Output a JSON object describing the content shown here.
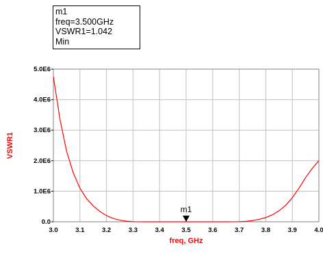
{
  "marker_readout": {
    "name": "m1",
    "freq_line": "freq=3.500GHz",
    "value_line": "VSWR1=1.042",
    "mode_line": "Min"
  },
  "chart_data": {
    "type": "line",
    "xlabel": "freq, GHz",
    "ylabel": "VSWR1",
    "xlim": [
      3.0,
      4.0
    ],
    "ylim": [
      0,
      5000000
    ],
    "x_ticks": [
      "3.0",
      "3.1",
      "3.2",
      "3.3",
      "3.4",
      "3.5",
      "3.6",
      "3.7",
      "3.8",
      "3.9",
      "4.0"
    ],
    "y_ticks": [
      "0.0",
      "1.0E6",
      "2.0E6",
      "3.0E6",
      "4.0E6",
      "5.0E6"
    ],
    "grid": true,
    "series": [
      {
        "color": "#ff0000",
        "x": [
          3.0,
          3.025,
          3.05,
          3.075,
          3.1,
          3.125,
          3.15,
          3.175,
          3.2,
          3.225,
          3.25,
          3.275,
          3.3,
          3.35,
          3.4,
          3.45,
          3.5,
          3.55,
          3.6,
          3.65,
          3.7,
          3.725,
          3.75,
          3.775,
          3.8,
          3.825,
          3.85,
          3.875,
          3.9,
          3.925,
          3.95,
          3.975,
          4.0
        ],
        "y": [
          4750000,
          3350000,
          2300000,
          1600000,
          1100000,
          760000,
          520000,
          340000,
          200000,
          110000,
          55000,
          20000,
          4000,
          0,
          0,
          0,
          1.042,
          0,
          0,
          0,
          4000,
          15000,
          40000,
          80000,
          140000,
          230000,
          360000,
          540000,
          790000,
          1100000,
          1450000,
          1750000,
          2000000
        ]
      }
    ],
    "markers": [
      {
        "name": "m1",
        "x": 3.5,
        "y": 1.042
      }
    ],
    "colors": {
      "curve": "#ff0000",
      "axis_label": "#ff0000",
      "grid": "#c0c0c0"
    }
  }
}
